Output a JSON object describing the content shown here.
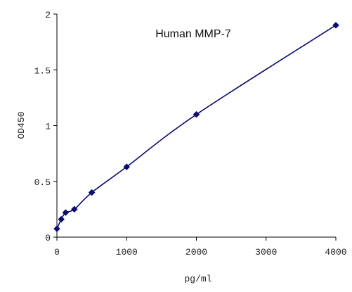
{
  "chart_data": {
    "type": "line",
    "title": "Human   MMP-7",
    "xlabel": "pg/ml",
    "ylabel": "OD450",
    "xlim": [
      0,
      4000
    ],
    "ylim": [
      0,
      2
    ],
    "xticks": [
      0,
      1000,
      2000,
      3000,
      4000
    ],
    "yticks": [
      0,
      0.5,
      1,
      1.5,
      2
    ],
    "xtick_labels": [
      "0",
      "1000",
      "2000",
      "3000",
      "4000"
    ],
    "ytick_labels": [
      "0",
      "0.5",
      "1",
      "1.5",
      "2"
    ],
    "grid": false,
    "legend": "none",
    "series": [
      {
        "x": [
          0,
          62.5,
          125,
          250,
          500,
          1000,
          2000,
          4000
        ],
        "y": [
          0.075,
          0.16,
          0.22,
          0.25,
          0.4,
          0.63,
          1.1,
          1.9
        ],
        "color": "#0a0a78",
        "marker": "diamond"
      }
    ]
  }
}
